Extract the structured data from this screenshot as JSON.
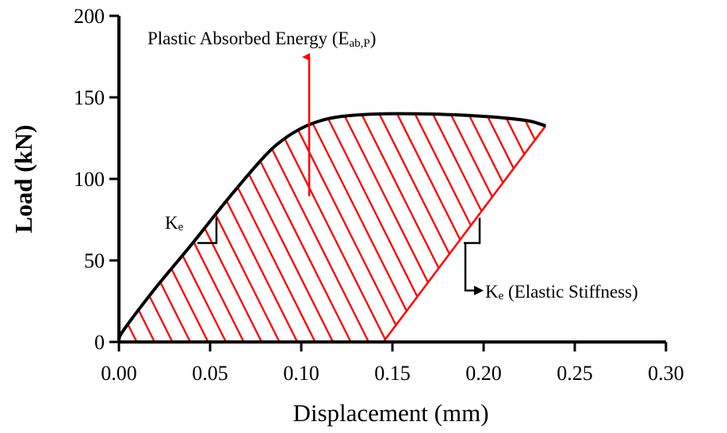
{
  "chart_data": {
    "type": "line",
    "xlabel": "Displacement (mm)",
    "ylabel": "Load (kN)",
    "xlim": [
      0,
      0.3
    ],
    "ylim": [
      0,
      200
    ],
    "xticks": [
      "0.00",
      "0.05",
      "0.10",
      "0.15",
      "0.20",
      "0.25",
      "0.30"
    ],
    "yticks": [
      "0",
      "50",
      "100",
      "150",
      "200"
    ],
    "grid": false,
    "colors": {
      "curve": "#000000",
      "hatch": "#ff0000",
      "unloading": "#ff0000",
      "arrow_energy": "#ff0000"
    },
    "series": [
      {
        "x": [
          0,
          0.003,
          0.02,
          0.04,
          0.06,
          0.08,
          0.09,
          0.1,
          0.11,
          0.12,
          0.135,
          0.15,
          0.17,
          0.19,
          0.21,
          0.225,
          0.234
        ],
        "y": [
          2,
          8,
          33,
          60,
          88,
          114,
          124,
          131,
          135.5,
          138,
          139.5,
          140,
          139.8,
          139,
          137.5,
          135.5,
          132.5
        ]
      }
    ],
    "unloading_line": {
      "x": [
        0.145,
        0.234
      ],
      "y": [
        0,
        132.5
      ]
    },
    "annotations": {
      "energy_main": "Plastic Absorbed Energy (E",
      "energy_sub": "ab,P",
      "energy_close": ")",
      "ke_left_main": "K",
      "ke_left_sub": "e",
      "ke_right_main": "K",
      "ke_right_sub": "e",
      "ke_right_rest": " (Elastic Stiffness)"
    }
  }
}
